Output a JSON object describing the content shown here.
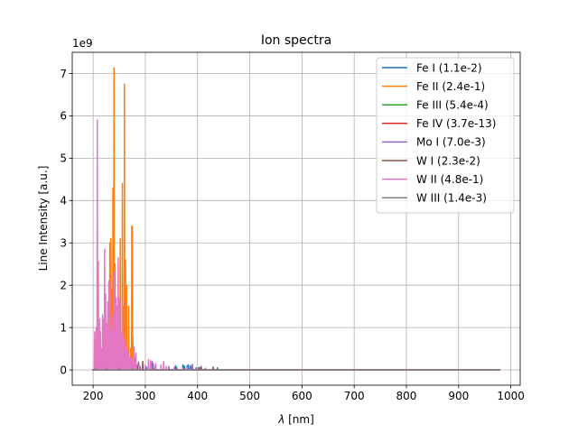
{
  "chart_data": {
    "type": "line",
    "title": "Ion spectra",
    "xlabel_symbol": "λ",
    "xlabel_unit": " [nm]",
    "ylabel": "Line Intensity [a.u.]",
    "y_offset_label": "1e9",
    "y_multiplier": 1000000000.0,
    "xlim": [
      160,
      1018
    ],
    "ylim": [
      -0.36,
      7.5
    ],
    "xticks": [
      200,
      300,
      400,
      500,
      600,
      700,
      800,
      900,
      1000
    ],
    "yticks": [
      0,
      1,
      2,
      3,
      4,
      5,
      6,
      7
    ],
    "grid": true,
    "legend_position": "upper right",
    "series": [
      {
        "name": "Fe I (1.1e-2)",
        "color": "#1f77b4",
        "peaks": [
          [
            248,
            0.05
          ],
          [
            260,
            0.08
          ],
          [
            272,
            0.06
          ],
          [
            302,
            0.07
          ],
          [
            320,
            0.05
          ],
          [
            345,
            0.06
          ],
          [
            358,
            0.1
          ],
          [
            372,
            0.12
          ],
          [
            375,
            0.09
          ],
          [
            382,
            0.12
          ],
          [
            386,
            0.1
          ],
          [
            404,
            0.06
          ],
          [
            438,
            0.05
          ]
        ]
      },
      {
        "name": "Fe II (2.4e-1)",
        "color": "#ff7f0e",
        "peaks": [
          [
            232,
            3.0
          ],
          [
            234,
            3.1
          ],
          [
            236,
            1.9
          ],
          [
            238,
            4.3
          ],
          [
            240,
            7.13
          ],
          [
            242,
            2.5
          ],
          [
            248,
            1.4
          ],
          [
            252,
            3.1
          ],
          [
            256,
            4.4
          ],
          [
            258,
            1.5
          ],
          [
            260,
            6.75
          ],
          [
            262,
            2.6
          ],
          [
            264,
            2.0
          ],
          [
            268,
            1.5
          ],
          [
            272,
            0.5
          ],
          [
            274,
            3.4
          ],
          [
            275,
            3.38
          ],
          [
            276,
            0.8
          ],
          [
            280,
            0.3
          ],
          [
            295,
            0.15
          ]
        ]
      },
      {
        "name": "Fe III (5.4e-4)",
        "color": "#2ca02c",
        "peaks": [
          [
            214,
            0.06
          ],
          [
            228,
            0.05
          ],
          [
            245,
            0.04
          ],
          [
            260,
            0.03
          ]
        ]
      },
      {
        "name": "Fe IV (3.7e-13)",
        "color": "#d62728",
        "peaks": [
          [
            210,
            0.01
          ],
          [
            240,
            0.01
          ]
        ]
      },
      {
        "name": "Mo I (7.0e-3)",
        "color": "#9467bd",
        "peaks": [
          [
            284,
            0.12
          ],
          [
            290,
            0.08
          ],
          [
            313,
            0.2
          ],
          [
            315,
            0.15
          ],
          [
            319,
            0.1
          ],
          [
            345,
            0.08
          ],
          [
            380,
            0.1
          ],
          [
            387,
            0.09
          ],
          [
            390,
            0.13
          ],
          [
            397,
            0.05
          ],
          [
            415,
            0.04
          ]
        ]
      },
      {
        "name": "W I (2.3e-2)",
        "color": "#8c564b",
        "peaks": [
          [
            255,
            0.1
          ],
          [
            265,
            0.12
          ],
          [
            270,
            0.1
          ],
          [
            287,
            0.18
          ],
          [
            295,
            0.2
          ],
          [
            360,
            0.06
          ],
          [
            401,
            0.05
          ],
          [
            407,
            0.08
          ],
          [
            430,
            0.07
          ]
        ]
      },
      {
        "name": "W II (4.8e-1)",
        "color": "#e377c2",
        "peaks": [
          [
            203,
            0.9
          ],
          [
            206,
            1.0
          ],
          [
            207,
            0.6
          ],
          [
            208,
            5.9
          ],
          [
            210,
            2.55
          ],
          [
            212,
            1.2
          ],
          [
            214,
            0.9
          ],
          [
            216,
            0.5
          ],
          [
            218,
            1.3
          ],
          [
            220,
            1.2
          ],
          [
            222,
            2.85
          ],
          [
            224,
            1.8
          ],
          [
            226,
            1.1
          ],
          [
            228,
            1.6
          ],
          [
            230,
            2.1
          ],
          [
            232,
            2.05
          ],
          [
            234,
            1.0
          ],
          [
            236,
            1.3
          ],
          [
            238,
            0.9
          ],
          [
            240,
            2.3
          ],
          [
            242,
            1.2
          ],
          [
            244,
            1.7
          ],
          [
            246,
            1.5
          ],
          [
            248,
            2.65
          ],
          [
            250,
            1.7
          ],
          [
            252,
            1.1
          ],
          [
            254,
            0.9
          ],
          [
            256,
            1.6
          ],
          [
            258,
            0.8
          ],
          [
            260,
            0.7
          ],
          [
            262,
            0.6
          ],
          [
            265,
            0.5
          ],
          [
            268,
            0.4
          ],
          [
            271,
            0.3
          ],
          [
            275,
            0.25
          ],
          [
            278,
            0.55
          ],
          [
            282,
            0.4
          ],
          [
            288,
            0.1
          ],
          [
            300,
            0.12
          ],
          [
            306,
            0.25
          ],
          [
            310,
            0.22
          ],
          [
            320,
            0.15
          ],
          [
            330,
            0.12
          ],
          [
            335,
            0.2
          ],
          [
            340,
            0.08
          ],
          [
            355,
            0.06
          ],
          [
            372,
            0.04
          ],
          [
            380,
            0.05
          ],
          [
            400,
            0.03
          ]
        ]
      },
      {
        "name": "W III (1.4e-3)",
        "color": "#7f7f7f",
        "peaks": [
          [
            205,
            0.04
          ],
          [
            225,
            0.03
          ],
          [
            250,
            0.04
          ],
          [
            275,
            0.03
          ],
          [
            300,
            0.02
          ]
        ]
      }
    ],
    "x_span": [
      198,
      980
    ]
  }
}
